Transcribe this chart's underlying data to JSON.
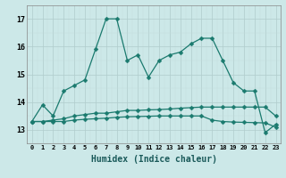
{
  "xlabel": "Humidex (Indice chaleur)",
  "x_labels": [
    "0",
    "1",
    "2",
    "3",
    "4",
    "5",
    "6",
    "7",
    "8",
    "9",
    "10",
    "11",
    "12",
    "13",
    "14",
    "15",
    "16",
    "17",
    "18",
    "19",
    "20",
    "21",
    "22",
    "23"
  ],
  "line1": [
    13.3,
    13.9,
    13.5,
    14.4,
    14.6,
    14.8,
    15.9,
    17.0,
    17.0,
    15.5,
    15.7,
    14.9,
    15.5,
    15.7,
    15.8,
    16.1,
    16.3,
    16.3,
    15.5,
    14.7,
    14.4,
    14.4,
    12.9,
    13.2
  ],
  "line2": [
    13.3,
    13.3,
    13.35,
    13.4,
    13.5,
    13.55,
    13.6,
    13.6,
    13.65,
    13.7,
    13.7,
    13.72,
    13.73,
    13.75,
    13.78,
    13.8,
    13.82,
    13.82,
    13.82,
    13.82,
    13.82,
    13.82,
    13.82,
    13.5
  ],
  "line3": [
    13.3,
    13.3,
    13.3,
    13.3,
    13.35,
    13.38,
    13.4,
    13.42,
    13.45,
    13.47,
    13.48,
    13.49,
    13.5,
    13.5,
    13.5,
    13.5,
    13.5,
    13.35,
    13.3,
    13.28,
    13.27,
    13.26,
    13.25,
    13.1
  ],
  "ylim": [
    12.5,
    17.5
  ],
  "yticks": [
    13,
    14,
    15,
    16,
    17
  ],
  "line_color": "#1a7a6e",
  "bg_color": "#cce8e8",
  "grid_major_color": "#b8d4d4",
  "grid_minor_color": "#d0e6e6",
  "markersize": 2.5
}
